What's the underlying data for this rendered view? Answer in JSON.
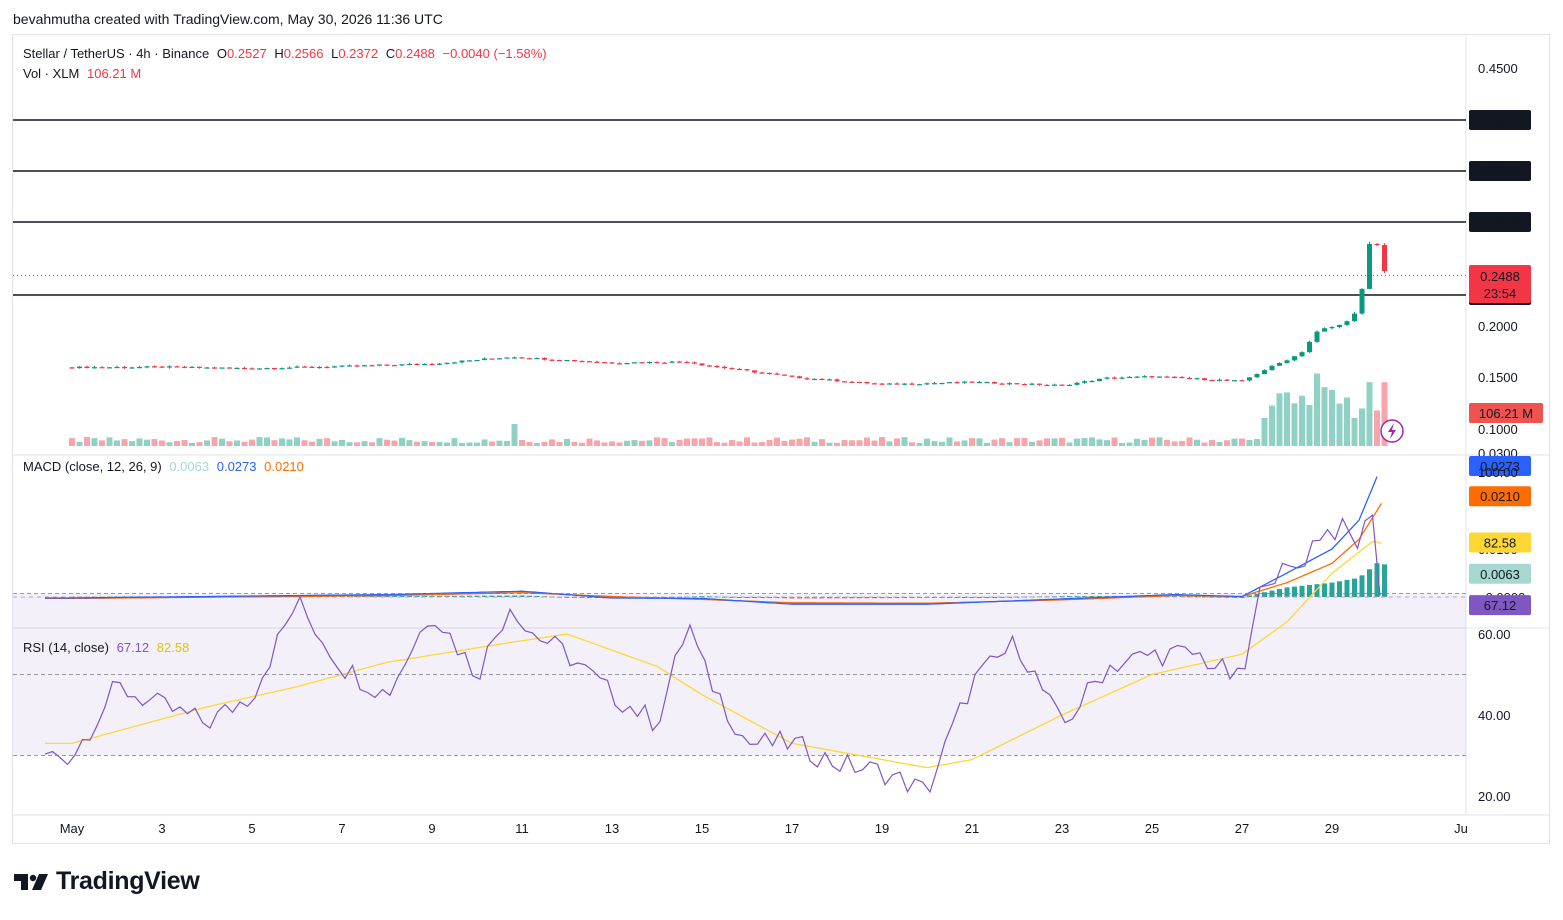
{
  "header": {
    "credit": "bevahmutha created with TradingView.com, May 30, 2026 11:36 UTC"
  },
  "legend": {
    "symbol": "Stellar / TetherUS · 4h · Binance",
    "o_label": "O",
    "o_value": "0.2527",
    "h_label": "H",
    "h_value": "0.2566",
    "l_label": "L",
    "l_value": "0.2372",
    "c_label": "C",
    "c_value": "0.2488",
    "change": "−0.0040 (−1.58%)",
    "vol_label": "Vol · XLM",
    "vol_value": "106.21 M",
    "macd_label": "MACD (close, 12, 26, 9)",
    "macd_hist": "0.0063",
    "macd_line": "0.0273",
    "macd_signal": "0.0210",
    "rsi_label": "RSI (14, close)",
    "rsi_value": "67.12",
    "rsi_ma": "82.58"
  },
  "price_axis": {
    "ticks": [
      "0.4500",
      "0.2000",
      "0.1500",
      "0.1000",
      "0.0300"
    ],
    "levels": [
      "0.4000",
      "0.3500",
      "0.3000",
      "0.2300"
    ],
    "last_price": "0.2488",
    "countdown": "23:54",
    "volume_tag": "106.21 M"
  },
  "macd_axis": {
    "ticks": [
      "0.0100",
      "−0.0000"
    ],
    "tags": [
      "0.0273",
      "0.0210",
      "0.0063"
    ]
  },
  "rsi_axis": {
    "ticks": [
      "100.00",
      "60.00",
      "40.00",
      "20.00"
    ],
    "tags": [
      "82.58",
      "67.12"
    ]
  },
  "time_axis": [
    "May",
    "3",
    "5",
    "7",
    "9",
    "11",
    "13",
    "15",
    "17",
    "19",
    "21",
    "23",
    "25",
    "27",
    "29",
    "Ju"
  ],
  "colors": {
    "up": "#089981",
    "down": "#f23645",
    "macd": "#2962ff",
    "signal": "#ff6d00",
    "rsi": "#7e57c2",
    "rsi_ma": "#fdd835",
    "level": "#131722"
  },
  "logo": {
    "text": "TradingView"
  },
  "chart_data": {
    "type": "candlestick",
    "symbol": "Stellar / TetherUS",
    "interval": "4h",
    "x_range": [
      "May 1",
      "May 30"
    ],
    "price_ylim": [
      0.03,
      0.45
    ],
    "horizontal_levels": [
      0.4,
      0.35,
      0.3,
      0.23
    ],
    "last_close": 0.2488,
    "close_path": [
      [
        1,
        0.1595
      ],
      [
        3,
        0.1598
      ],
      [
        5,
        0.1585
      ],
      [
        7,
        0.1605
      ],
      [
        9,
        0.163
      ],
      [
        10.8,
        0.17
      ],
      [
        11,
        0.169
      ],
      [
        13,
        0.164
      ],
      [
        14.7,
        0.165
      ],
      [
        15,
        0.162
      ],
      [
        17,
        0.15
      ],
      [
        19,
        0.143
      ],
      [
        21,
        0.145
      ],
      [
        23,
        0.142
      ],
      [
        24,
        0.149
      ],
      [
        25,
        0.1505
      ],
      [
        27,
        0.146
      ],
      [
        27.5,
        0.157
      ],
      [
        28.3,
        0.173
      ],
      [
        28.7,
        0.196
      ],
      [
        29.2,
        0.201
      ],
      [
        29.6,
        0.215
      ],
      [
        29.75,
        0.26
      ],
      [
        29.92,
        0.297
      ],
      [
        30.05,
        0.266
      ],
      [
        30.2,
        0.2488
      ]
    ],
    "macd": {
      "ylim": [
        -0.003,
        0.03
      ],
      "macd_line_path": [
        [
          1,
          -0.0002
        ],
        [
          8,
          0.0005
        ],
        [
          11,
          0.0012
        ],
        [
          13,
          -0.0002
        ],
        [
          15,
          -0.0003
        ],
        [
          17,
          -0.0015
        ],
        [
          20,
          -0.0015
        ],
        [
          23,
          -0.0004
        ],
        [
          25.5,
          0.0005
        ],
        [
          27,
          0.0001
        ],
        [
          28,
          0.005
        ],
        [
          29,
          0.01
        ],
        [
          29.6,
          0.016
        ],
        [
          30.1,
          0.0273
        ]
      ],
      "signal_path": [
        [
          1,
          -0.0003
        ],
        [
          8,
          0.0003
        ],
        [
          11,
          0.0009
        ],
        [
          13,
          0.0001
        ],
        [
          15,
          -0.0005
        ],
        [
          17,
          -0.0012
        ],
        [
          20,
          -0.0013
        ],
        [
          23,
          -0.0006
        ],
        [
          25.5,
          0.0003
        ],
        [
          27,
          0.0001
        ],
        [
          28,
          0.003
        ],
        [
          29,
          0.007
        ],
        [
          29.6,
          0.012
        ],
        [
          30.2,
          0.021
        ]
      ],
      "histogram": 0.0063
    },
    "rsi": {
      "ylim": [
        15,
        100
      ],
      "bands": [
        70,
        50,
        30
      ],
      "rsi_path": [
        [
          1,
          30
        ],
        [
          2,
          47
        ],
        [
          3,
          42
        ],
        [
          4,
          38
        ],
        [
          5,
          45
        ],
        [
          6,
          68
        ],
        [
          7,
          52
        ],
        [
          8,
          45
        ],
        [
          9,
          66
        ],
        [
          10,
          50
        ],
        [
          10.8,
          69
        ],
        [
          11,
          62
        ],
        [
          12,
          55
        ],
        [
          13,
          45
        ],
        [
          14,
          38
        ],
        [
          14.7,
          63
        ],
        [
          15,
          52
        ],
        [
          16,
          33
        ],
        [
          17,
          33
        ],
        [
          18,
          28
        ],
        [
          19,
          26
        ],
        [
          20,
          21
        ],
        [
          21,
          48
        ],
        [
          22,
          58
        ],
        [
          23,
          37
        ],
        [
          24,
          52
        ],
        [
          25,
          55
        ],
        [
          26,
          55
        ],
        [
          27,
          48
        ],
        [
          27.5,
          75
        ],
        [
          28,
          75
        ],
        [
          28.3,
          77
        ],
        [
          28.7,
          85
        ],
        [
          29.2,
          86
        ],
        [
          29.6,
          82
        ],
        [
          29.92,
          92
        ],
        [
          30.05,
          70
        ],
        [
          30.2,
          67
        ]
      ],
      "rsi_ma_path": [
        [
          1,
          33
        ],
        [
          4,
          42
        ],
        [
          6,
          47
        ],
        [
          8,
          53
        ],
        [
          10.8,
          58
        ],
        [
          12,
          60
        ],
        [
          14,
          52
        ],
        [
          15,
          45
        ],
        [
          17,
          33
        ],
        [
          20,
          27
        ],
        [
          21,
          29
        ],
        [
          23,
          40
        ],
        [
          25,
          50
        ],
        [
          27,
          55
        ],
        [
          28,
          63
        ],
        [
          29,
          75
        ],
        [
          29.92,
          83
        ],
        [
          30.2,
          82
        ]
      ],
      "last_rsi": 67.12,
      "last_rsi_ma": 82.58
    }
  }
}
